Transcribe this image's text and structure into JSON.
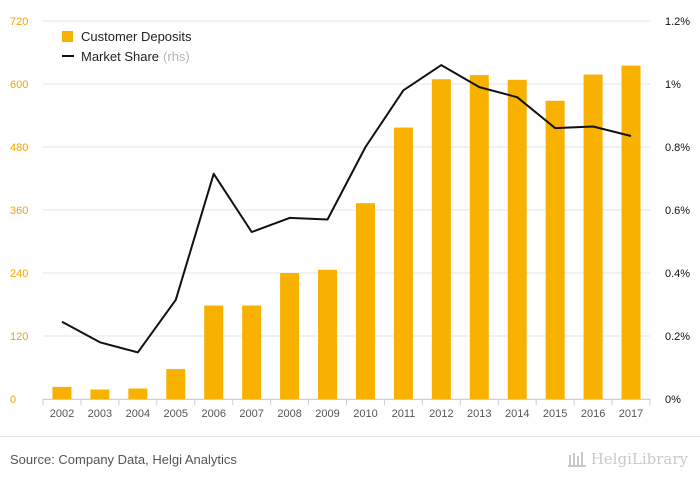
{
  "chart_data": {
    "type": "bar",
    "categories": [
      "2002",
      "2003",
      "2004",
      "2005",
      "2006",
      "2007",
      "2008",
      "2009",
      "2010",
      "2011",
      "2012",
      "2013",
      "2014",
      "2015",
      "2016",
      "2017"
    ],
    "series": [
      {
        "name": "Customer Deposits",
        "type": "bar",
        "axis": "left",
        "values": [
          23,
          18,
          20,
          57,
          178,
          178,
          240,
          246,
          373,
          517,
          609,
          617,
          608,
          568,
          618,
          635
        ]
      },
      {
        "name": "Market Share",
        "type": "line",
        "axis": "right",
        "values": [
          0.245,
          0.18,
          0.148,
          0.315,
          0.715,
          0.53,
          0.575,
          0.57,
          0.8,
          0.98,
          1.06,
          0.99,
          0.958,
          0.86,
          0.865,
          0.835
        ]
      }
    ],
    "y_left": {
      "ylim": [
        0,
        720
      ],
      "ticks": [
        "0",
        "120",
        "240",
        "360",
        "480",
        "600",
        "720"
      ]
    },
    "y_right": {
      "ylim": [
        0,
        1.2
      ],
      "ticks": [
        "0%",
        "0.2%",
        "0.4%",
        "0.6%",
        "0.8%",
        "1%",
        "1.2%"
      ]
    },
    "grid": true,
    "legend_position": "top-left"
  },
  "legend": {
    "bar_label": "Customer Deposits",
    "line_label": "Market Share",
    "line_suffix": "(rhs)"
  },
  "colors": {
    "bar": "#f9b100",
    "line": "#111111",
    "grid": "#e5e5e5",
    "tick_left": "#f0a500",
    "tick_right": "#111111",
    "tick_x": "#555555"
  },
  "footer": {
    "source": "Source: Company Data, Helgi Analytics",
    "brand": "HelgiLibrary"
  }
}
